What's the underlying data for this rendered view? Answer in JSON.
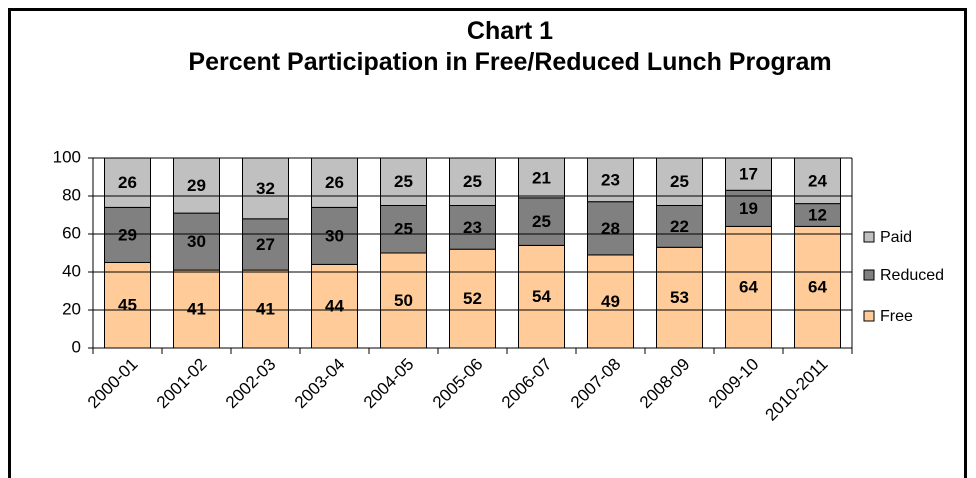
{
  "chart_data": {
    "type": "stacked_bar",
    "title": "Chart 1",
    "subtitle": "Percent Participation in Free/Reduced Lunch Program",
    "categories": [
      "2000-01",
      "2001-02",
      "2002-03",
      "2003-04",
      "2004-05",
      "2005-06",
      "2006-07",
      "2007-08",
      "2008-09",
      "2009-10",
      "2010-2011"
    ],
    "series": [
      {
        "name": "Free",
        "color": "#FFCC99",
        "values": [
          45,
          41,
          41,
          44,
          50,
          52,
          54,
          49,
          53,
          64,
          64
        ]
      },
      {
        "name": "Reduced",
        "color": "#808080",
        "values": [
          29,
          30,
          27,
          30,
          25,
          23,
          25,
          28,
          22,
          19,
          12
        ]
      },
      {
        "name": "Paid",
        "color": "#C0C0C0",
        "values": [
          26,
          29,
          32,
          26,
          25,
          25,
          21,
          23,
          25,
          17,
          24
        ]
      }
    ],
    "ylim": [
      0,
      100
    ],
    "yticks": [
      0,
      20,
      40,
      60,
      80,
      100
    ],
    "grid": true,
    "legend": "right"
  }
}
